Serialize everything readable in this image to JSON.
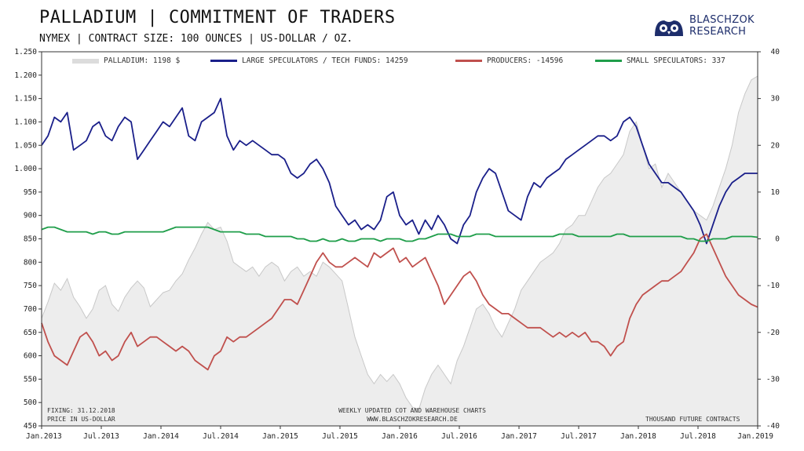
{
  "header": {
    "title": "PALLADIUM | COMMITMENT OF TRADERS",
    "subtitle": "NYMEX | CONTRACT SIZE: 100 OUNCES | US-DOLLAR / OZ."
  },
  "logo": {
    "line1": "BLASCHZOK",
    "line2": "RESEARCH",
    "brand_color": "#1d2d6b",
    "icon": "owl-logo-icon"
  },
  "footer": {
    "fixing": "FIXING: 31.12.2018",
    "price_unit": "PRICE IN US-DOLLAR",
    "center_line1": "WEEKLY UPDATED COT AND WAREHOUSE CHARTS",
    "center_line2": "WWW.BLASCHZOKRESEARCH.DE",
    "right_unit": "THOUSAND FUTURE CONTRACTS"
  },
  "chart_data": {
    "type": "line",
    "title": "PALLADIUM | COMMITMENT OF TRADERS",
    "x_ticks": [
      "Jan.2013",
      "Jul.2013",
      "Jan.2014",
      "Jul.2014",
      "Jan.2015",
      "Jul.2015",
      "Jan.2016",
      "Jul.2016",
      "Jan.2017",
      "Jul.2017",
      "Jan.2018",
      "Jul.2018",
      "Jan.2019"
    ],
    "y_left": {
      "ticks": [
        "450",
        "500",
        "550",
        "600",
        "650",
        "700",
        "750",
        "800",
        "850",
        "900",
        "950",
        "1.000",
        "1.050",
        "1.100",
        "1.150",
        "1.200",
        "1.250"
      ],
      "range": [
        450,
        1250
      ]
    },
    "y_right": {
      "ticks": [
        "-40",
        "-30",
        "-20",
        "-10",
        "0",
        "10",
        "20",
        "30",
        "40"
      ],
      "range": [
        -40,
        40
      ]
    },
    "series": [
      {
        "name": "PALLADIUM",
        "legend": "PALLADIUM: 1198 $",
        "axis": "left",
        "style": "area",
        "color": "#c8c8c8",
        "values": [
          680,
          715,
          755,
          740,
          765,
          725,
          705,
          680,
          700,
          740,
          750,
          710,
          695,
          725,
          745,
          760,
          745,
          705,
          720,
          735,
          740,
          760,
          775,
          805,
          830,
          860,
          885,
          870,
          875,
          845,
          800,
          790,
          780,
          790,
          770,
          790,
          800,
          790,
          760,
          780,
          790,
          770,
          780,
          770,
          800,
          790,
          775,
          760,
          700,
          640,
          600,
          560,
          540,
          560,
          545,
          560,
          540,
          510,
          490,
          485,
          530,
          560,
          580,
          560,
          540,
          590,
          620,
          660,
          700,
          710,
          690,
          660,
          640,
          670,
          700,
          740,
          760,
          780,
          800,
          810,
          820,
          840,
          870,
          880,
          900,
          900,
          930,
          960,
          980,
          990,
          1010,
          1030,
          1080,
          1100,
          1050,
          1000,
          1010,
          960,
          990,
          970,
          950,
          930,
          910,
          900,
          890,
          920,
          960,
          1000,
          1050,
          1120,
          1160,
          1190,
          1198
        ]
      },
      {
        "name": "LARGE SPECULATORS / TECH FUNDS",
        "legend": "LARGE SPECULATORS / TECH FUNDS: 14259",
        "axis": "right",
        "style": "line",
        "color": "#1a1f8a",
        "values": [
          20,
          22,
          26,
          25,
          27,
          19,
          20,
          21,
          24,
          25,
          22,
          21,
          24,
          26,
          25,
          17,
          19,
          21,
          23,
          25,
          24,
          26,
          28,
          22,
          21,
          25,
          26,
          27,
          30,
          22,
          19,
          21,
          20,
          21,
          20,
          19,
          18,
          18,
          17,
          14,
          13,
          14,
          16,
          17,
          15,
          12,
          7,
          5,
          3,
          4,
          2,
          3,
          2,
          4,
          9,
          10,
          5,
          3,
          4,
          1,
          4,
          2,
          5,
          3,
          0,
          -1,
          3,
          5,
          10,
          13,
          15,
          14,
          10,
          6,
          5,
          4,
          9,
          12,
          11,
          13,
          14,
          15,
          17,
          18,
          19,
          20,
          21,
          22,
          22,
          21,
          22,
          25,
          26,
          24,
          20,
          16,
          14,
          12,
          12,
          11,
          10,
          8,
          6,
          3,
          -1,
          3,
          7,
          10,
          12,
          13,
          14,
          14,
          14
        ]
      },
      {
        "name": "PRODUCERS",
        "legend": "PRODUCERS: -14596",
        "axis": "right",
        "style": "line",
        "color": "#c0504d",
        "values": [
          -18,
          -22,
          -25,
          -26,
          -27,
          -24,
          -21,
          -20,
          -22,
          -25,
          -24,
          -26,
          -25,
          -22,
          -20,
          -23,
          -22,
          -21,
          -21,
          -22,
          -23,
          -24,
          -23,
          -24,
          -26,
          -27,
          -28,
          -25,
          -24,
          -21,
          -22,
          -21,
          -21,
          -20,
          -19,
          -18,
          -17,
          -15,
          -13,
          -13,
          -14,
          -11,
          -8,
          -5,
          -3,
          -5,
          -6,
          -6,
          -5,
          -4,
          -5,
          -6,
          -3,
          -4,
          -3,
          -2,
          -5,
          -4,
          -6,
          -5,
          -4,
          -7,
          -10,
          -14,
          -12,
          -10,
          -8,
          -7,
          -9,
          -12,
          -14,
          -15,
          -16,
          -16,
          -17,
          -18,
          -19,
          -19,
          -19,
          -20,
          -21,
          -20,
          -21,
          -20,
          -21,
          -20,
          -22,
          -22,
          -23,
          -25,
          -23,
          -22,
          -17,
          -14,
          -12,
          -11,
          -10,
          -9,
          -9,
          -8,
          -7,
          -5,
          -3,
          0,
          1,
          -2,
          -5,
          -8,
          -10,
          -12,
          -13,
          -14,
          -14.6
        ]
      },
      {
        "name": "SMALL SPECULATORS",
        "legend": "SMALL SPECULATORS: 337",
        "axis": "right",
        "style": "line",
        "color": "#1f9e4a",
        "values": [
          2,
          2.5,
          2.5,
          2,
          1.5,
          1.5,
          1.5,
          1.5,
          1,
          1.5,
          1.5,
          1,
          1,
          1.5,
          1.5,
          1.5,
          1.5,
          1.5,
          1.5,
          1.5,
          2,
          2.5,
          2.5,
          2.5,
          2.5,
          2.5,
          2.5,
          2,
          1.5,
          1.5,
          1.5,
          1.5,
          1,
          1,
          1,
          0.5,
          0.5,
          0.5,
          0.5,
          0.5,
          0,
          0,
          -0.5,
          -0.5,
          0,
          -0.5,
          -0.5,
          0,
          -0.5,
          -0.5,
          0,
          0,
          0,
          -0.5,
          0,
          0,
          0,
          -0.5,
          -0.5,
          0,
          0,
          0.5,
          1,
          1,
          1,
          0.5,
          0.5,
          0.5,
          1,
          1,
          1,
          0.5,
          0.5,
          0.5,
          0.5,
          0.5,
          0.5,
          0.5,
          0.5,
          0.5,
          0.5,
          1,
          1,
          1,
          0.5,
          0.5,
          0.5,
          0.5,
          0.5,
          0.5,
          1,
          1,
          0.5,
          0.5,
          0.5,
          0.5,
          0.5,
          0.5,
          0.5,
          0.5,
          0.5,
          0,
          0,
          -0.5,
          -0.5,
          0,
          0,
          0,
          0.5,
          0.5,
          0.5,
          0.5,
          0.34
        ]
      }
    ],
    "grid": false,
    "legend_position": "top"
  }
}
